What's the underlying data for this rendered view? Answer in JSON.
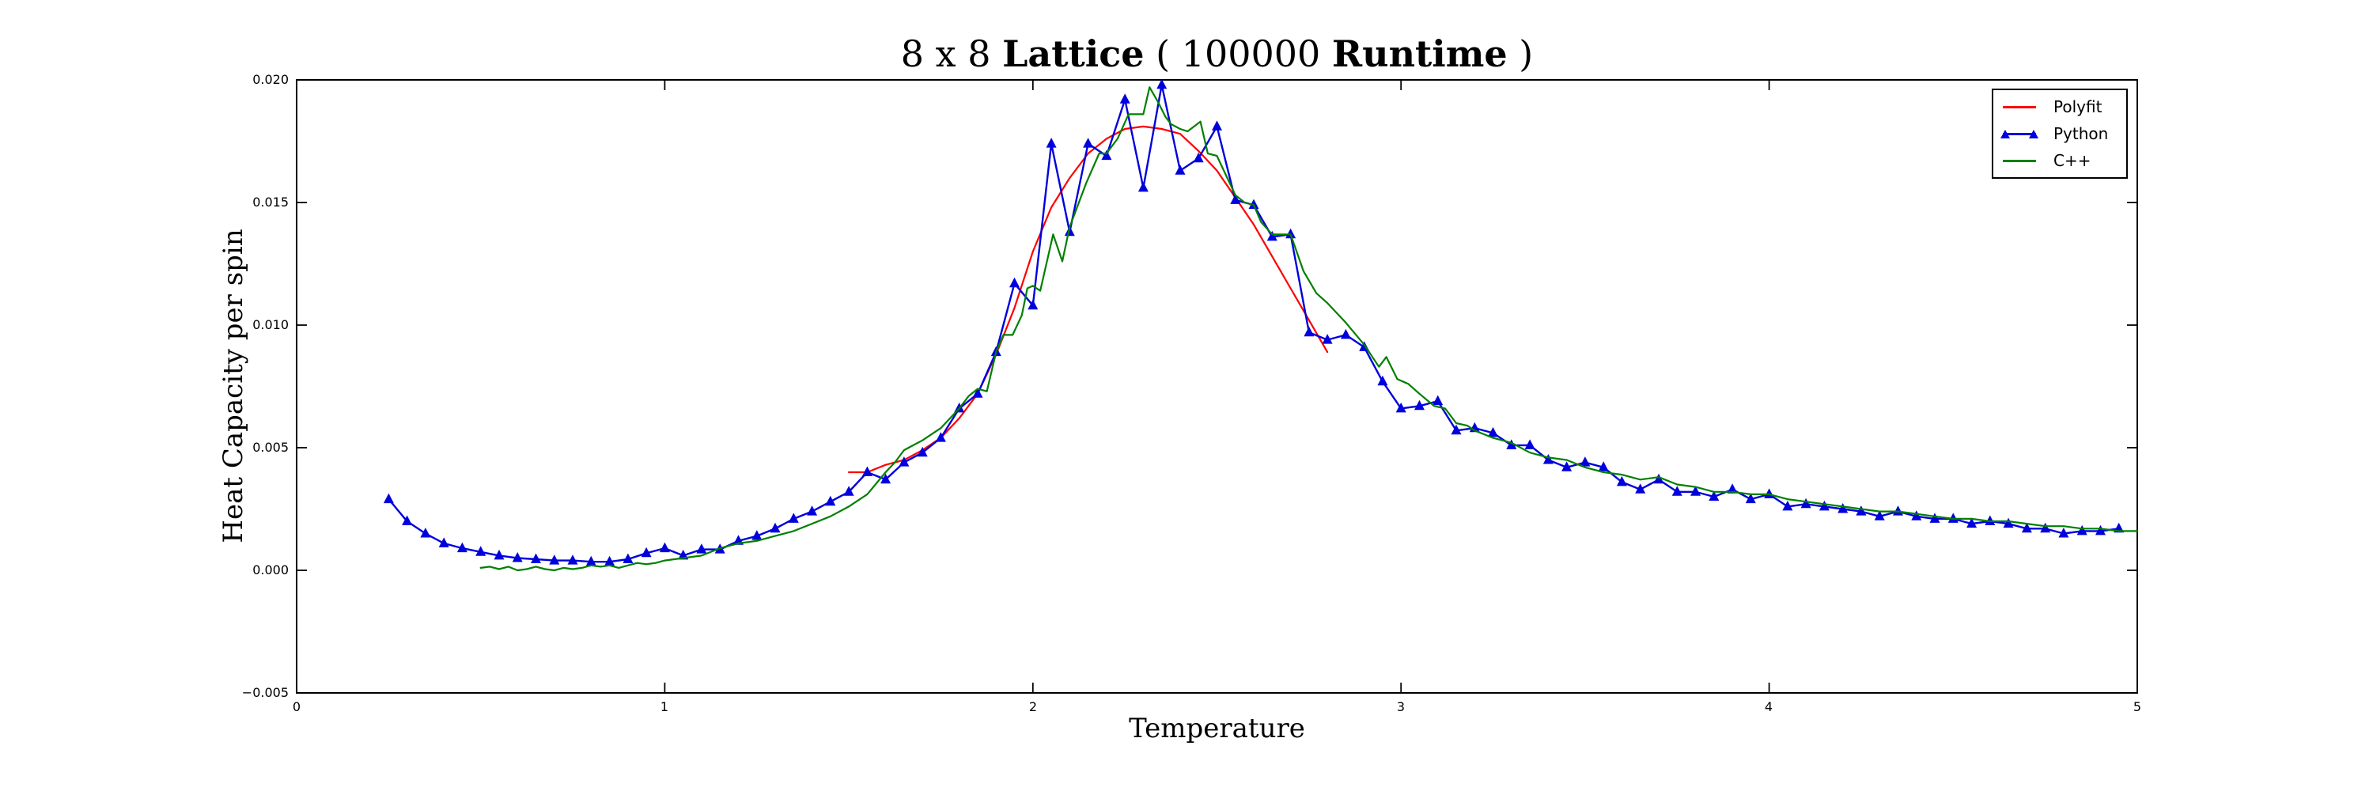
{
  "figure": {
    "title_parts": [
      {
        "text": "8 x 8 ",
        "bold": false
      },
      {
        "text": "Lattice",
        "bold": true
      },
      {
        "text": " ( 100000 ",
        "bold": false
      },
      {
        "text": "Runtime",
        "bold": true
      },
      {
        "text": " )",
        "bold": false
      }
    ],
    "xlabel": "Temperature",
    "ylabel": "Heat Capacity per spin",
    "background": "#ffffff",
    "axes_color": "#000000"
  },
  "legend": {
    "position": "upper right",
    "items": [
      {
        "label": "Polyfit",
        "color": "#ff0000",
        "marker": "none"
      },
      {
        "label": "Python",
        "color": "#0000dd",
        "marker": "triangle"
      },
      {
        "label": "C++",
        "color": "#008000",
        "marker": "none"
      }
    ]
  },
  "chart_data": {
    "type": "line",
    "title": "8 x 8 Lattice ( 100000 Runtime )",
    "xlabel": "Temperature",
    "ylabel": "Heat Capacity per spin",
    "xlim": [
      0,
      5
    ],
    "ylim": [
      -0.005,
      0.02
    ],
    "grid": false,
    "legend_position": "upper right",
    "xticks": [
      "0",
      "1",
      "2",
      "3",
      "4",
      "5"
    ],
    "yticks": [
      "0.020",
      "0.015",
      "0.010",
      "0.005",
      "0.000",
      "−0.005"
    ],
    "xtick_values": [
      0,
      1,
      2,
      3,
      4,
      5
    ],
    "ytick_values": [
      0.02,
      0.015,
      0.01,
      0.005,
      0.0,
      -0.005
    ],
    "series": [
      {
        "name": "Polyfit",
        "color": "#ff0000",
        "marker": null,
        "width": 2.2,
        "points": [
          [
            1.5,
            0.004
          ],
          [
            1.55,
            0.004
          ],
          [
            1.6,
            0.0043
          ],
          [
            1.65,
            0.0045
          ],
          [
            1.7,
            0.0049
          ],
          [
            1.75,
            0.0054
          ],
          [
            1.8,
            0.0062
          ],
          [
            1.85,
            0.0072
          ],
          [
            1.9,
            0.0088
          ],
          [
            1.95,
            0.0107
          ],
          [
            2.0,
            0.013
          ],
          [
            2.05,
            0.0148
          ],
          [
            2.1,
            0.016
          ],
          [
            2.15,
            0.017
          ],
          [
            2.2,
            0.0176
          ],
          [
            2.25,
            0.018
          ],
          [
            2.3,
            0.0181
          ],
          [
            2.35,
            0.018
          ],
          [
            2.4,
            0.0178
          ],
          [
            2.45,
            0.0171
          ],
          [
            2.5,
            0.0163
          ],
          [
            2.55,
            0.0152
          ],
          [
            2.6,
            0.0141
          ],
          [
            2.65,
            0.0128
          ],
          [
            2.7,
            0.0115
          ],
          [
            2.75,
            0.0102
          ],
          [
            2.8,
            0.0089
          ]
        ]
      },
      {
        "name": "Python",
        "color": "#0000dd",
        "marker": "triangle",
        "width": 2.4,
        "points": [
          [
            0.25,
            0.0029
          ],
          [
            0.3,
            0.002
          ],
          [
            0.35,
            0.0015
          ],
          [
            0.4,
            0.0011
          ],
          [
            0.45,
            0.0009
          ],
          [
            0.5,
            0.00075
          ],
          [
            0.55,
            0.0006
          ],
          [
            0.6,
            0.0005
          ],
          [
            0.65,
            0.00045
          ],
          [
            0.7,
            0.0004
          ],
          [
            0.75,
            0.0004
          ],
          [
            0.8,
            0.00035
          ],
          [
            0.85,
            0.00035
          ],
          [
            0.9,
            0.00045
          ],
          [
            0.95,
            0.0007
          ],
          [
            1.0,
            0.0009
          ],
          [
            1.05,
            0.0006
          ],
          [
            1.1,
            0.00085
          ],
          [
            1.15,
            0.00085
          ],
          [
            1.2,
            0.0012
          ],
          [
            1.25,
            0.0014
          ],
          [
            1.3,
            0.0017
          ],
          [
            1.35,
            0.0021
          ],
          [
            1.4,
            0.0024
          ],
          [
            1.45,
            0.0028
          ],
          [
            1.5,
            0.0032
          ],
          [
            1.55,
            0.004
          ],
          [
            1.6,
            0.0037
          ],
          [
            1.65,
            0.0044
          ],
          [
            1.7,
            0.0048
          ],
          [
            1.75,
            0.0054
          ],
          [
            1.8,
            0.0066
          ],
          [
            1.85,
            0.0072
          ],
          [
            1.9,
            0.0089
          ],
          [
            1.95,
            0.0117
          ],
          [
            2.0,
            0.0108
          ],
          [
            2.05,
            0.0174
          ],
          [
            2.1,
            0.0138
          ],
          [
            2.15,
            0.0174
          ],
          [
            2.2,
            0.0169
          ],
          [
            2.25,
            0.0192
          ],
          [
            2.3,
            0.0156
          ],
          [
            2.35,
            0.0198
          ],
          [
            2.4,
            0.0163
          ],
          [
            2.45,
            0.0168
          ],
          [
            2.5,
            0.0181
          ],
          [
            2.55,
            0.0151
          ],
          [
            2.6,
            0.0149
          ],
          [
            2.65,
            0.0136
          ],
          [
            2.7,
            0.0137
          ],
          [
            2.75,
            0.0097
          ],
          [
            2.8,
            0.0094
          ],
          [
            2.85,
            0.0096
          ],
          [
            2.9,
            0.0091
          ],
          [
            2.95,
            0.0077
          ],
          [
            3.0,
            0.0066
          ],
          [
            3.05,
            0.0067
          ],
          [
            3.1,
            0.0069
          ],
          [
            3.15,
            0.0057
          ],
          [
            3.2,
            0.0058
          ],
          [
            3.25,
            0.0056
          ],
          [
            3.3,
            0.0051
          ],
          [
            3.35,
            0.0051
          ],
          [
            3.4,
            0.0045
          ],
          [
            3.45,
            0.0042
          ],
          [
            3.5,
            0.0044
          ],
          [
            3.55,
            0.0042
          ],
          [
            3.6,
            0.0036
          ],
          [
            3.65,
            0.0033
          ],
          [
            3.7,
            0.0037
          ],
          [
            3.75,
            0.0032
          ],
          [
            3.8,
            0.0032
          ],
          [
            3.85,
            0.003
          ],
          [
            3.9,
            0.0033
          ],
          [
            3.95,
            0.0029
          ],
          [
            4.0,
            0.0031
          ],
          [
            4.05,
            0.0026
          ],
          [
            4.1,
            0.0027
          ],
          [
            4.15,
            0.0026
          ],
          [
            4.2,
            0.0025
          ],
          [
            4.25,
            0.0024
          ],
          [
            4.3,
            0.0022
          ],
          [
            4.35,
            0.0024
          ],
          [
            4.4,
            0.0022
          ],
          [
            4.45,
            0.0021
          ],
          [
            4.5,
            0.0021
          ],
          [
            4.55,
            0.0019
          ],
          [
            4.6,
            0.002
          ],
          [
            4.65,
            0.0019
          ],
          [
            4.7,
            0.0017
          ],
          [
            4.75,
            0.0017
          ],
          [
            4.8,
            0.0015
          ],
          [
            4.85,
            0.0016
          ],
          [
            4.9,
            0.0016
          ],
          [
            4.95,
            0.0017
          ]
        ]
      },
      {
        "name": "C++",
        "color": "#008000",
        "marker": null,
        "width": 2.2,
        "points": [
          [
            0.5,
            0.0001
          ],
          [
            0.525,
            0.00015
          ],
          [
            0.55,
            5e-05
          ],
          [
            0.575,
            0.00015
          ],
          [
            0.6,
            0.0
          ],
          [
            0.625,
            5e-05
          ],
          [
            0.65,
            0.00015
          ],
          [
            0.675,
            5e-05
          ],
          [
            0.7,
            0.0
          ],
          [
            0.725,
            0.0001
          ],
          [
            0.75,
            5e-05
          ],
          [
            0.775,
            0.0001
          ],
          [
            0.8,
            0.0002
          ],
          [
            0.825,
            0.00015
          ],
          [
            0.85,
            0.0002
          ],
          [
            0.875,
            0.0001
          ],
          [
            0.9,
            0.0002
          ],
          [
            0.925,
            0.0003
          ],
          [
            0.95,
            0.00025
          ],
          [
            0.975,
            0.0003
          ],
          [
            1.0,
            0.0004
          ],
          [
            1.05,
            0.0005
          ],
          [
            1.1,
            0.0006
          ],
          [
            1.15,
            0.0009
          ],
          [
            1.2,
            0.0011
          ],
          [
            1.25,
            0.0012
          ],
          [
            1.3,
            0.0014
          ],
          [
            1.35,
            0.0016
          ],
          [
            1.4,
            0.0019
          ],
          [
            1.45,
            0.0022
          ],
          [
            1.5,
            0.0026
          ],
          [
            1.55,
            0.0031
          ],
          [
            1.6,
            0.004
          ],
          [
            1.625,
            0.0044
          ],
          [
            1.65,
            0.0049
          ],
          [
            1.675,
            0.0051
          ],
          [
            1.7,
            0.0053
          ],
          [
            1.75,
            0.0058
          ],
          [
            1.775,
            0.0062
          ],
          [
            1.8,
            0.0066
          ],
          [
            1.825,
            0.0071
          ],
          [
            1.85,
            0.0074
          ],
          [
            1.875,
            0.0073
          ],
          [
            1.9,
            0.0089
          ],
          [
            1.92,
            0.0096
          ],
          [
            1.945,
            0.0096
          ],
          [
            1.97,
            0.0104
          ],
          [
            1.985,
            0.0115
          ],
          [
            2.0,
            0.0116
          ],
          [
            2.02,
            0.0114
          ],
          [
            2.055,
            0.0137
          ],
          [
            2.08,
            0.0126
          ],
          [
            2.1,
            0.014
          ],
          [
            2.145,
            0.0158
          ],
          [
            2.18,
            0.017
          ],
          [
            2.2,
            0.017
          ],
          [
            2.23,
            0.0176
          ],
          [
            2.26,
            0.0186
          ],
          [
            2.3,
            0.0186
          ],
          [
            2.317,
            0.0197
          ],
          [
            2.34,
            0.0191
          ],
          [
            2.36,
            0.0185
          ],
          [
            2.375,
            0.0182
          ],
          [
            2.4,
            0.018
          ],
          [
            2.42,
            0.0179
          ],
          [
            2.455,
            0.0183
          ],
          [
            2.475,
            0.017
          ],
          [
            2.5,
            0.0169
          ],
          [
            2.525,
            0.0161
          ],
          [
            2.55,
            0.0153
          ],
          [
            2.575,
            0.015
          ],
          [
            2.6,
            0.0149
          ],
          [
            2.62,
            0.0142
          ],
          [
            2.65,
            0.0137
          ],
          [
            2.7,
            0.0137
          ],
          [
            2.735,
            0.0122
          ],
          [
            2.77,
            0.0113
          ],
          [
            2.8,
            0.0109
          ],
          [
            2.85,
            0.0101
          ],
          [
            2.9,
            0.0092
          ],
          [
            2.94,
            0.0083
          ],
          [
            2.96,
            0.0087
          ],
          [
            2.99,
            0.0078
          ],
          [
            3.02,
            0.0076
          ],
          [
            3.05,
            0.0072
          ],
          [
            3.09,
            0.0067
          ],
          [
            3.12,
            0.0066
          ],
          [
            3.15,
            0.006
          ],
          [
            3.18,
            0.0059
          ],
          [
            3.2,
            0.0057
          ],
          [
            3.25,
            0.0054
          ],
          [
            3.3,
            0.0052
          ],
          [
            3.35,
            0.0048
          ],
          [
            3.4,
            0.0046
          ],
          [
            3.45,
            0.0045
          ],
          [
            3.5,
            0.0042
          ],
          [
            3.55,
            0.004
          ],
          [
            3.6,
            0.0039
          ],
          [
            3.65,
            0.0037
          ],
          [
            3.7,
            0.0038
          ],
          [
            3.75,
            0.0035
          ],
          [
            3.8,
            0.0034
          ],
          [
            3.85,
            0.0032
          ],
          [
            3.9,
            0.0032
          ],
          [
            3.95,
            0.0031
          ],
          [
            4.0,
            0.0031
          ],
          [
            4.05,
            0.0029
          ],
          [
            4.1,
            0.0028
          ],
          [
            4.15,
            0.0027
          ],
          [
            4.2,
            0.0026
          ],
          [
            4.25,
            0.0025
          ],
          [
            4.3,
            0.0024
          ],
          [
            4.35,
            0.0024
          ],
          [
            4.4,
            0.0023
          ],
          [
            4.45,
            0.0022
          ],
          [
            4.5,
            0.0021
          ],
          [
            4.55,
            0.0021
          ],
          [
            4.6,
            0.002
          ],
          [
            4.65,
            0.002
          ],
          [
            4.7,
            0.0019
          ],
          [
            4.75,
            0.0018
          ],
          [
            4.8,
            0.0018
          ],
          [
            4.85,
            0.0017
          ],
          [
            4.9,
            0.0017
          ],
          [
            4.95,
            0.0016
          ],
          [
            5.0,
            0.0016
          ]
        ]
      }
    ]
  }
}
